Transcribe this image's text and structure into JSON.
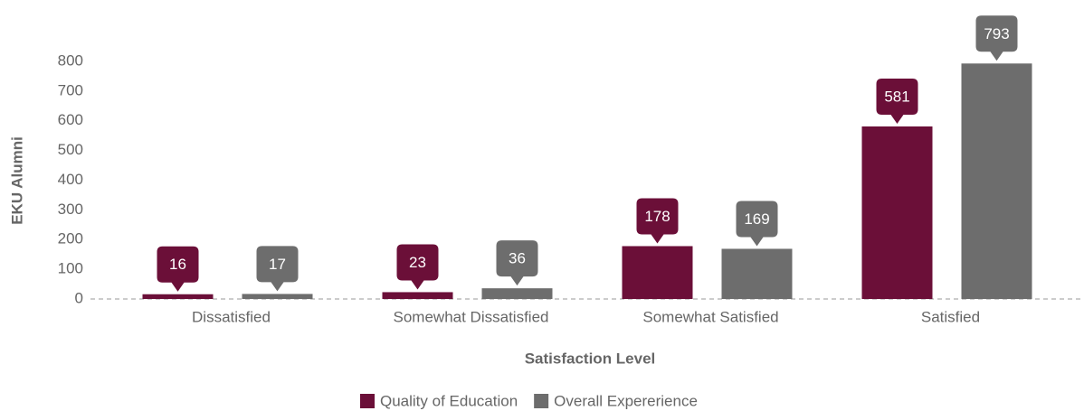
{
  "chart_data": {
    "type": "bar",
    "categories": [
      "Dissatisfied",
      "Somewhat Dissatisfied",
      "Somewhat Satisfied",
      "Satisfied"
    ],
    "series": [
      {
        "name": "Quality of Education",
        "color": "#6b0f38",
        "values": [
          16,
          23,
          178,
          581
        ]
      },
      {
        "name": "Overall Expererience",
        "color": "#6d6d6d",
        "values": [
          17,
          36,
          169,
          793
        ]
      }
    ],
    "x_label": "Satisfaction Level",
    "y_label": "EKU Alumni",
    "ylim": [
      0,
      800
    ],
    "yticks": [
      0,
      100,
      200,
      300,
      400,
      500,
      600,
      700,
      800
    ],
    "grid": false,
    "legend": "bottom"
  }
}
